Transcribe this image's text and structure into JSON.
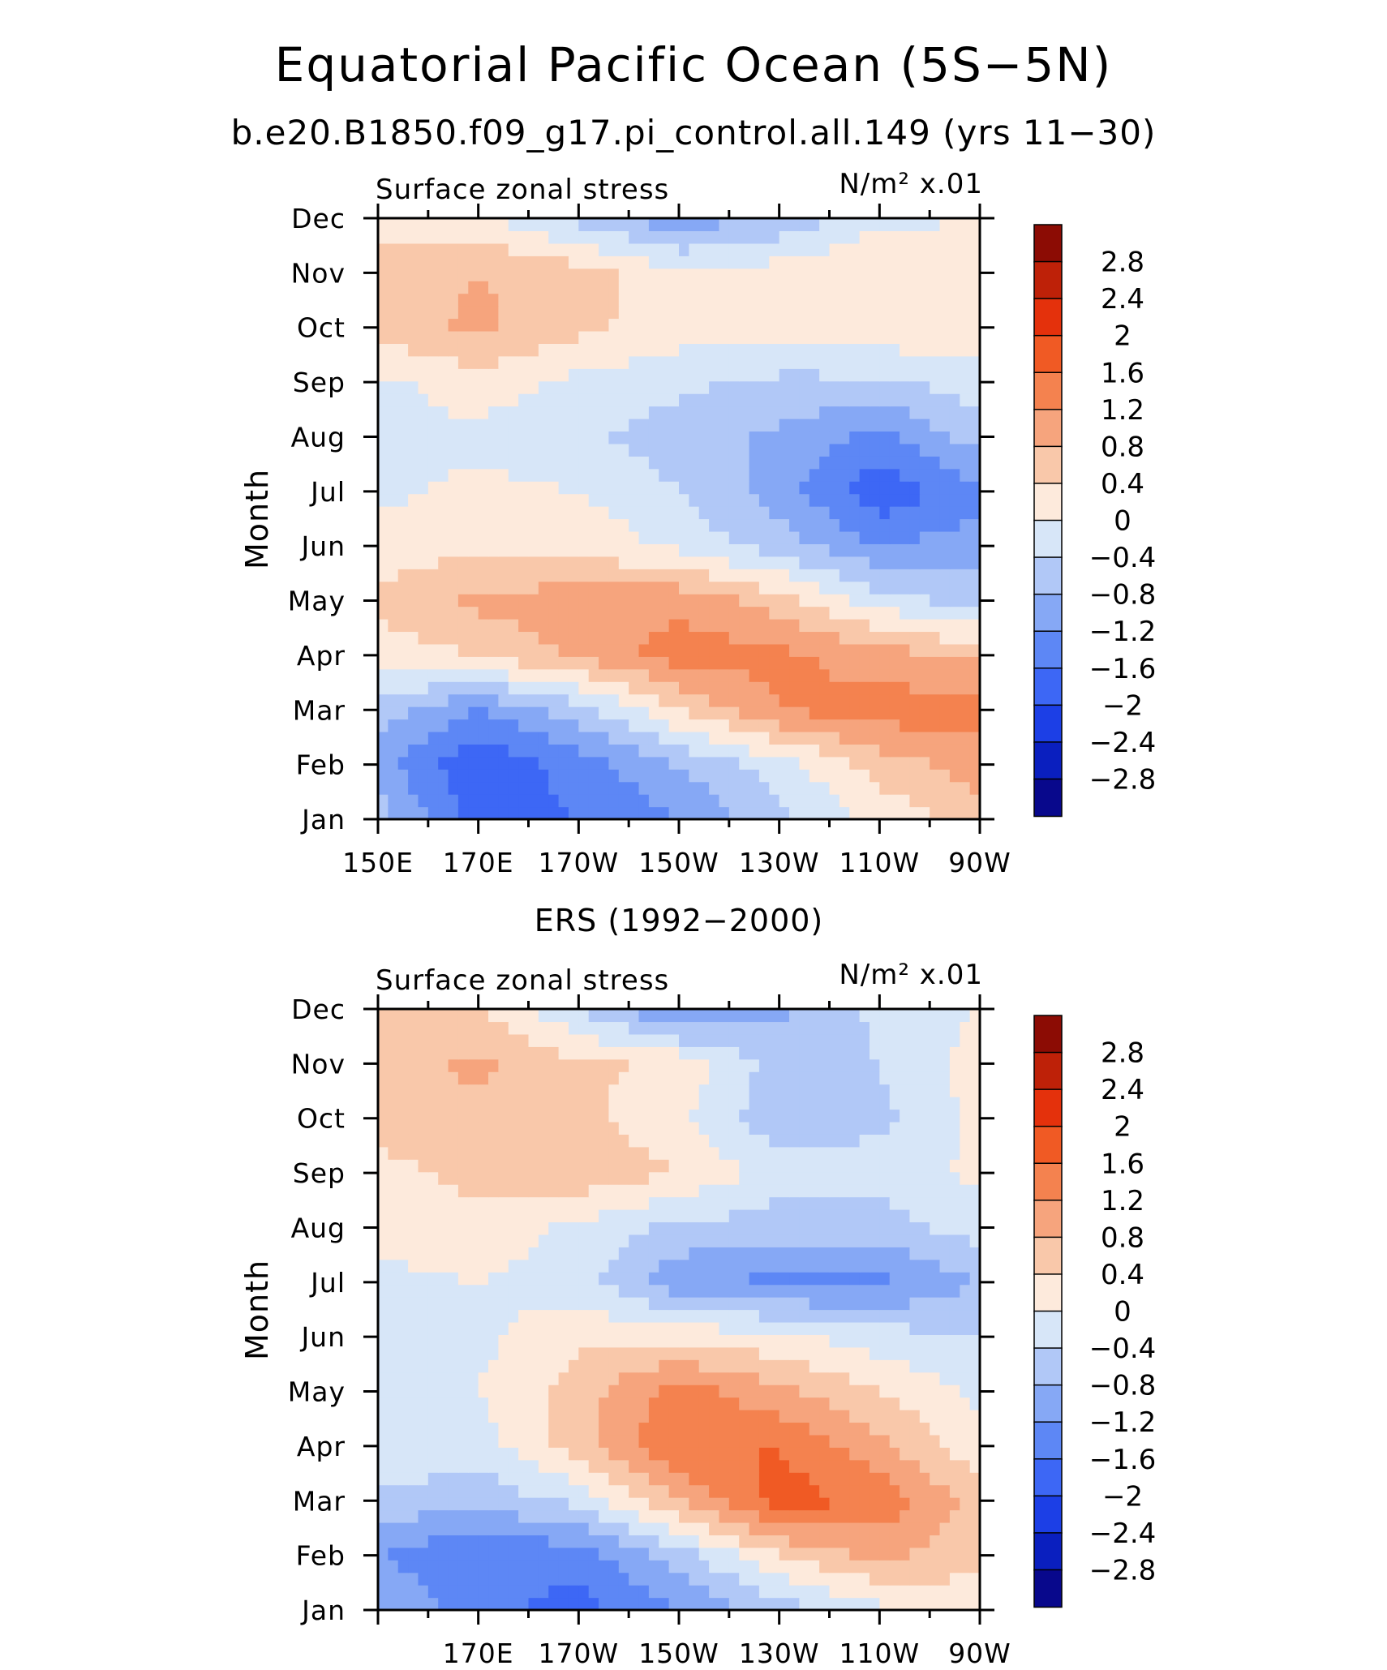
{
  "title": "Equatorial Pacific Ocean (5S−5N)",
  "subtitle": "b.e20.B1850.f09_g17.pi_control.all.149 (yrs 11−30)",
  "colors": {
    "levels": [
      "#08088c",
      "#0a1fbf",
      "#1c3fe6",
      "#3d67f5",
      "#5d87f5",
      "#86a8f5",
      "#b1c8f7",
      "#d7e6f8",
      "#fdeadc",
      "#f9c8aa",
      "#f6a47d",
      "#f4824f",
      "#f05a24",
      "#e4310c",
      "#be2108",
      "#8c0c04"
    ]
  },
  "chart_data": [
    {
      "type": "heatmap",
      "panel_title": "",
      "left_label": "Surface zonal stress",
      "right_label": "N/m² x.01",
      "ylabel": "Month",
      "xlabel": "",
      "x": [
        150,
        170,
        190,
        210,
        230,
        250,
        270
      ],
      "x_tick_labels": [
        "150E",
        "170E",
        "170W",
        "150W",
        "130W",
        "110W",
        "90W"
      ],
      "xlim": [
        150,
        270
      ],
      "y_tick_labels": [
        "Jan",
        "Feb",
        "Mar",
        "Apr",
        "May",
        "Jun",
        "Jul",
        "Aug",
        "Sep",
        "Oct",
        "Nov",
        "Dec"
      ],
      "colorbar_labels": [
        "2.8",
        "2.4",
        "2",
        "1.6",
        "1.2",
        "0.8",
        "0.4",
        "0",
        "−0.4",
        "−0.8",
        "−1.2",
        "−1.6",
        "−2",
        "−2.4",
        "−2.8"
      ],
      "values": [
        [
          -0.6,
          -1.8,
          -1.6,
          -1.2,
          -0.5,
          0.1,
          0.6
        ],
        [
          -1.0,
          -2.0,
          -1.4,
          -0.8,
          -0.2,
          0.6,
          1.0
        ],
        [
          -0.6,
          -1.2,
          -0.6,
          0.4,
          1.2,
          1.4,
          1.4
        ],
        [
          0.2,
          0.4,
          0.9,
          1.4,
          1.3,
          1.0,
          0.7
        ],
        [
          0.5,
          0.9,
          1.0,
          1.1,
          0.6,
          -0.2,
          -0.6
        ],
        [
          0.2,
          0.3,
          0.3,
          -0.1,
          -0.6,
          -1.2,
          -1.0
        ],
        [
          -0.1,
          0.1,
          0.0,
          -0.4,
          -1.0,
          -1.9,
          -1.3
        ],
        [
          -0.1,
          -0.1,
          -0.3,
          -0.6,
          -0.9,
          -1.3,
          -0.6
        ],
        [
          -0.1,
          0.2,
          -0.1,
          -0.3,
          -0.5,
          -0.5,
          -0.2
        ],
        [
          0.6,
          0.9,
          0.5,
          0.2,
          0.2,
          0.3,
          0.3
        ],
        [
          0.5,
          0.8,
          0.6,
          0.1,
          0.2,
          0.4,
          0.3
        ],
        [
          0.3,
          0.1,
          -0.5,
          -1.1,
          -0.7,
          -0.1,
          0.0
        ]
      ]
    },
    {
      "type": "heatmap",
      "panel_title": "ERS (1992−2000)",
      "left_label": "Surface zonal stress",
      "right_label": "N/m² x.01",
      "ylabel": "Month",
      "xlabel": "",
      "x": [
        150,
        170,
        190,
        210,
        230,
        250,
        270
      ],
      "x_tick_labels": [
        "",
        "170E",
        "170W",
        "150W",
        "130W",
        "110W",
        "90W"
      ],
      "xlim": [
        150,
        270
      ],
      "y_tick_labels": [
        "Jan",
        "Feb",
        "Mar",
        "Apr",
        "May",
        "Jun",
        "Jul",
        "Aug",
        "Sep",
        "Oct",
        "Nov",
        "Dec"
      ],
      "colorbar_labels": [
        "2.8",
        "2.4",
        "2",
        "1.6",
        "1.2",
        "0.8",
        "0.4",
        "0",
        "−0.4",
        "−0.8",
        "−1.2",
        "−1.6",
        "−2",
        "−2.4",
        "−2.8"
      ],
      "values": [
        [
          -0.8,
          -1.4,
          -1.8,
          -1.2,
          -0.6,
          -0.1,
          0.2
        ],
        [
          -1.2,
          -1.6,
          -1.4,
          -0.6,
          0.4,
          0.9,
          0.5
        ],
        [
          -0.5,
          -0.7,
          -0.3,
          0.8,
          1.8,
          1.5,
          0.6
        ],
        [
          0.0,
          -0.2,
          0.6,
          1.6,
          1.6,
          0.9,
          0.1
        ],
        [
          -0.1,
          0.0,
          0.6,
          1.4,
          0.9,
          0.4,
          -0.1
        ],
        [
          -0.4,
          -0.1,
          0.3,
          0.3,
          0.1,
          -0.2,
          -0.4
        ],
        [
          -0.1,
          0.0,
          -0.2,
          -1.1,
          -1.3,
          -1.3,
          -0.8
        ],
        [
          0.1,
          0.3,
          -0.1,
          -0.5,
          -0.6,
          -0.6,
          -0.2
        ],
        [
          0.3,
          0.5,
          0.7,
          0.4,
          -0.2,
          -0.2,
          0.1
        ],
        [
          0.5,
          0.7,
          0.5,
          0.1,
          -0.7,
          -0.5,
          0.1
        ],
        [
          0.6,
          0.9,
          0.5,
          0.3,
          -0.6,
          -0.4,
          0.2
        ],
        [
          0.4,
          0.4,
          -0.4,
          -1.3,
          -0.9,
          -0.3,
          0.0
        ]
      ]
    }
  ]
}
